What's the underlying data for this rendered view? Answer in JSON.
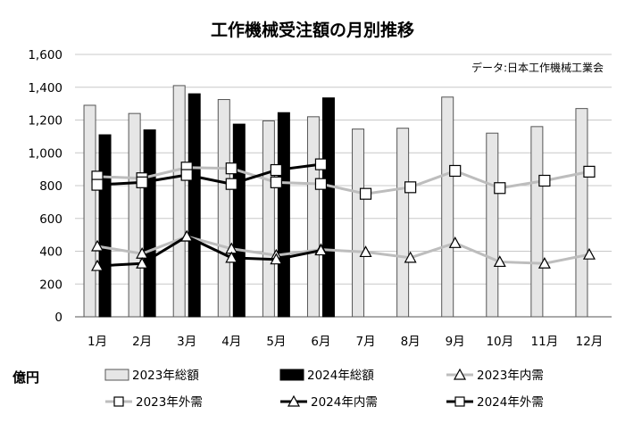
{
  "chart_data": {
    "type": "bar",
    "title": "工作機械受注額の月別推移",
    "source_note": "データ:日本工作機械工業会",
    "unit_label": "億円",
    "categories": [
      "1月",
      "2月",
      "3月",
      "4月",
      "5月",
      "6月",
      "7月",
      "8月",
      "9月",
      "10月",
      "11月",
      "12月"
    ],
    "ylim": [
      0,
      1600
    ],
    "yticks": [
      0,
      200,
      400,
      600,
      800,
      1000,
      1200,
      1400,
      1600
    ],
    "ytick_labels": [
      "0",
      "200",
      "400",
      "600",
      "800",
      "1,000",
      "1,200",
      "1,400",
      "1,600"
    ],
    "grid": "horizontal",
    "legend_position": "bottom",
    "bar_series": [
      {
        "name": "2023年総額",
        "color": "#e6e6e6",
        "border": "#555555",
        "values": [
          1290,
          1240,
          1410,
          1325,
          1195,
          1220,
          1145,
          1150,
          1340,
          1120,
          1160,
          1270
        ]
      },
      {
        "name": "2024年総額",
        "color": "#000000",
        "border": "#000000",
        "values": [
          1110,
          1140,
          1360,
          1175,
          1245,
          1335,
          null,
          null,
          null,
          null,
          null,
          null
        ]
      }
    ],
    "line_series": [
      {
        "name": "2023年内需",
        "color": "#bdbdbd",
        "marker": "triangle",
        "values": [
          430,
          385,
          490,
          415,
          375,
          410,
          395,
          360,
          450,
          335,
          325,
          380
        ]
      },
      {
        "name": "2023年外需",
        "color": "#bdbdbd",
        "marker": "square",
        "values": [
          855,
          845,
          910,
          905,
          820,
          810,
          750,
          790,
          890,
          785,
          830,
          885
        ]
      },
      {
        "name": "2024年内需",
        "color": "#000000",
        "marker": "triangle",
        "values": [
          310,
          325,
          490,
          360,
          350,
          405,
          null,
          null,
          null,
          null,
          null,
          null
        ]
      },
      {
        "name": "2024年外需",
        "color": "#000000",
        "marker": "square",
        "values": [
          805,
          820,
          865,
          810,
          895,
          930,
          null,
          null,
          null,
          null,
          null,
          null
        ]
      }
    ]
  }
}
